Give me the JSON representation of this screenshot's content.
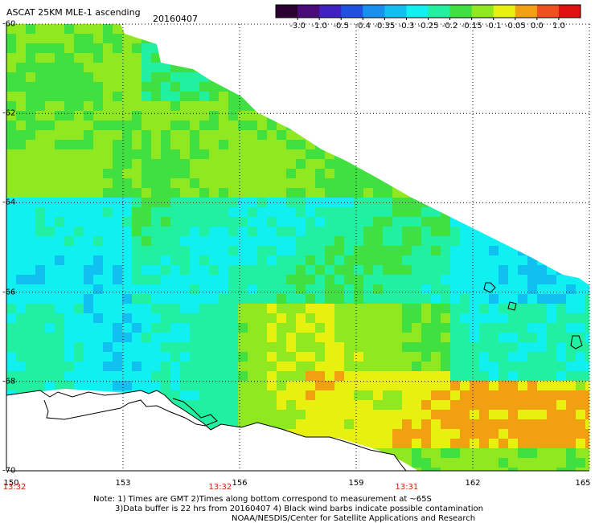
{
  "header": {
    "title": "ASCAT 25KM MLE-1 ascending",
    "date": "20160407"
  },
  "colorbar": {
    "labels": [
      "-3.0",
      "-1.0",
      "-0.5",
      "-0.4",
      "-0.35",
      "-0.3",
      "-0.25",
      "-0.2",
      "-0.15",
      "-0.1",
      "-0.05",
      "0.0",
      "1.0"
    ],
    "colors": [
      "#2a0030",
      "#4a0a7a",
      "#4020c0",
      "#2050e0",
      "#1890f0",
      "#10c0f0",
      "#10f0f0",
      "#20f0a0",
      "#40e040",
      "#90e820",
      "#e8f010",
      "#f0a010",
      "#f05020",
      "#e01010"
    ]
  },
  "map": {
    "lon_min": 150,
    "lon_max": 165,
    "lat_top": -60,
    "lat_bottom": -70,
    "lat_labels": [
      "-60",
      "-62",
      "-64",
      "-66",
      "-68",
      "-70"
    ],
    "lon_labels": [
      "150",
      "153",
      "156",
      "159",
      "162",
      "165"
    ],
    "time_labels": [
      {
        "lon": 150,
        "text": "13:32"
      },
      {
        "lon": 155.5,
        "text": "13:32"
      },
      {
        "lon": 160.3,
        "text": "13:31"
      }
    ]
  },
  "footer": {
    "line1": "Note: 1) Times are GMT 2)Times along bottom correspond to measurement at ~65S",
    "line2": "3)Data buffer is 22 hrs from 20160407 4) Black wind barbs indicate possible contamination",
    "line3": "NOAA/NESDIS/Center for Satellite Applications and Research"
  }
}
